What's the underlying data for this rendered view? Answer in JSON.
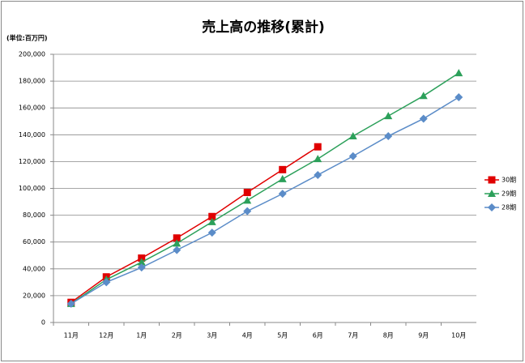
{
  "chart_data": {
    "type": "line",
    "title": "売上高の推移(累計)",
    "ylabel": "(単位:百万円)",
    "categories": [
      "11月",
      "12月",
      "1月",
      "2月",
      "3月",
      "4月",
      "5月",
      "6月",
      "7月",
      "8月",
      "9月",
      "10月"
    ],
    "series": [
      {
        "name": "30期",
        "color": "#e00000",
        "marker": "square",
        "values": [
          15000,
          34000,
          48000,
          63000,
          79000,
          97000,
          114000,
          131000,
          null,
          null,
          null,
          null
        ]
      },
      {
        "name": "29期",
        "color": "#2ca05a",
        "marker": "triangle",
        "values": [
          14000,
          32000,
          45000,
          59000,
          75000,
          91000,
          107000,
          122000,
          139000,
          154000,
          169000,
          186000
        ]
      },
      {
        "name": "28期",
        "color": "#5b8cc8",
        "marker": "diamond",
        "values": [
          14000,
          30000,
          41000,
          54000,
          67000,
          83000,
          96000,
          110000,
          124000,
          139000,
          152000,
          168000
        ]
      }
    ],
    "ylim": [
      0,
      200000
    ],
    "yticks": [
      0,
      {
        "value": 20000,
        "label": "20,000"
      },
      {
        "value": 40000,
        "label": "40,000"
      },
      {
        "value": 60000,
        "label": "60,000"
      },
      {
        "value": 80000,
        "label": "80,000"
      },
      {
        "value": 100000,
        "label": "100,000"
      },
      {
        "value": 120000,
        "label": "120,000"
      },
      {
        "value": 140000,
        "label": "140,000"
      },
      {
        "value": 160000,
        "label": "160,000"
      },
      {
        "value": 180000,
        "label": "180,000"
      },
      {
        "value": 200000,
        "label": "200,000"
      }
    ],
    "grid": true,
    "legend": "right"
  }
}
